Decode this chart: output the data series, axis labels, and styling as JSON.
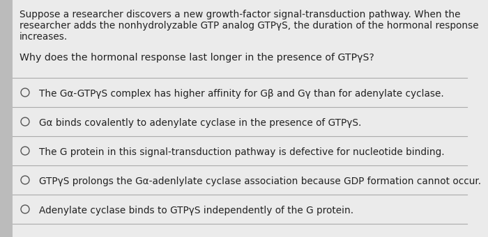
{
  "background_color": "#c8c8c8",
  "panel_color": "#e8e8e8",
  "text_color": "#222222",
  "paragraph1_line1": "Suppose a researcher discovers a new growth-factor signal-transduction pathway. When the",
  "paragraph1_line2": "researcher adds the nonhydrolyzable GTP analog GTPγS, the duration of the hormonal response",
  "paragraph1_line3": "increases.",
  "question": "Why does the hormonal response last longer in the presence of GTPγS?",
  "options": [
    "The Gα-GTPγS complex has higher affinity for Gβ and Gγ than for adenylate cyclase.",
    "Gα binds covalently to adenylate cyclase in the presence of GTPγS.",
    "The G protein in this signal-transduction pathway is defective for nucleotide binding.",
    "GTPγS prolongs the Gα-adenlylate cyclase association because GDP formation cannot occur.",
    "Adenylate cyclase binds to GTPγS independently of the G protein."
  ],
  "divider_color": "#aaaaaa",
  "circle_color": "#555555",
  "left_bar_color": "#bbbbbb",
  "font_size_paragraph": 9.8,
  "font_size_question": 10.2,
  "font_size_options": 9.8
}
